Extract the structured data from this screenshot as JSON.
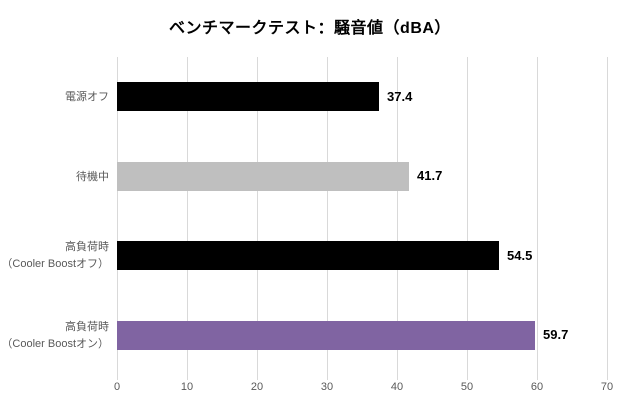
{
  "title": "ベンチマークテスト：騒音値（dBA）",
  "chart_data": {
    "type": "bar",
    "orientation": "horizontal",
    "title": "ベンチマークテスト：騒音値（dBA）",
    "categories": [
      "電源オフ",
      "待機中",
      "高負荷時\n（Cooler Boostオフ）",
      "高負荷時\n（Cooler Boostオン）"
    ],
    "values": [
      37.4,
      41.7,
      54.5,
      59.7
    ],
    "value_labels": [
      "37.4",
      "41.7",
      "54.5",
      "59.7"
    ],
    "bar_colors": [
      "#000000",
      "#bfbfbf",
      "#000000",
      "#8064a2"
    ],
    "xlabel": "",
    "ylabel": "",
    "xlim": [
      0,
      70
    ],
    "x_ticks": [
      0,
      10,
      20,
      30,
      40,
      50,
      60,
      70
    ],
    "grid": true,
    "legend": "none"
  },
  "colors": {
    "background": "#ffffff",
    "gridline": "#d9d9d9",
    "tick": "#d9d9d9",
    "axis_text": "#595959",
    "category_text": "#595959",
    "value_text": "#000000",
    "title_text": "#000000"
  }
}
